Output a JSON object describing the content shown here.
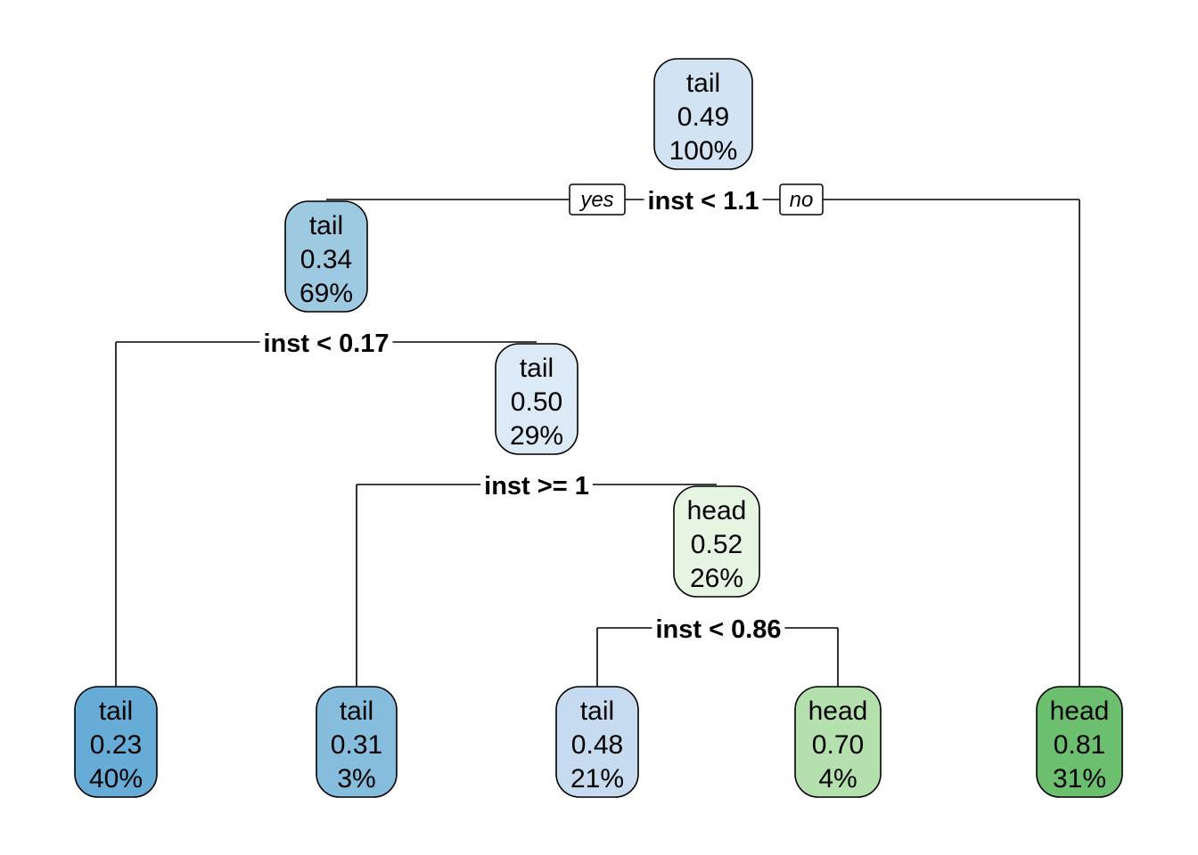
{
  "tree": {
    "nodes": [
      {
        "id": "root",
        "class": "tail",
        "prob": "0.49",
        "pct": "100%",
        "color": "#d2e3f3"
      },
      {
        "id": "n2",
        "class": "tail",
        "prob": "0.34",
        "pct": "69%",
        "color": "#9ecae1"
      },
      {
        "id": "n3",
        "class": "tail",
        "prob": "0.50",
        "pct": "29%",
        "color": "#dce9f6"
      },
      {
        "id": "n4",
        "class": "head",
        "prob": "0.52",
        "pct": "26%",
        "color": "#e6f5e1"
      },
      {
        "id": "leaf1",
        "class": "tail",
        "prob": "0.23",
        "pct": "40%",
        "color": "#66acd6"
      },
      {
        "id": "leaf2",
        "class": "tail",
        "prob": "0.31",
        "pct": "3%",
        "color": "#86bcdc"
      },
      {
        "id": "leaf3",
        "class": "tail",
        "prob": "0.48",
        "pct": "21%",
        "color": "#c6dbef"
      },
      {
        "id": "leaf4",
        "class": "head",
        "prob": "0.70",
        "pct": "4%",
        "color": "#b3e0ac"
      },
      {
        "id": "leaf5",
        "class": "head",
        "prob": "0.81",
        "pct": "31%",
        "color": "#6cbf6f"
      }
    ],
    "splits": [
      {
        "id": "s1",
        "label": "inst < 1.1"
      },
      {
        "id": "s2",
        "label": "inst < 0.17"
      },
      {
        "id": "s3",
        "label": "inst >= 1"
      },
      {
        "id": "s4",
        "label": "inst < 0.86"
      }
    ],
    "yes_label": "yes",
    "no_label": "no"
  }
}
